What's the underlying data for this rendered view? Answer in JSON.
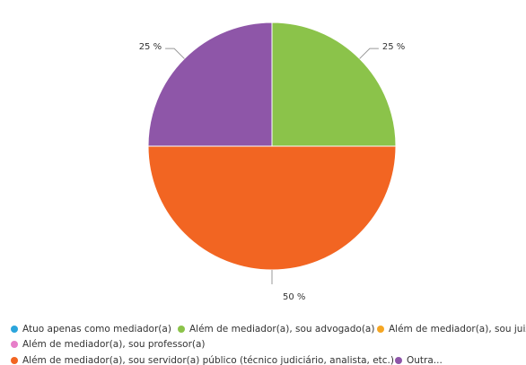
{
  "chart_data": {
    "type": "pie",
    "categories": [
      "Atuo apenas como mediador(a)",
      "Além de mediador(a), sou advogado(a)",
      "Além de mediador(a), sou juiz(a)",
      "Além de mediador(a), sou professor(a)",
      "Além de mediador(a), sou servidor(a) público (técnico judiciário, analista, etc.)",
      "Outra..."
    ],
    "values": [
      0,
      25,
      0,
      0,
      50,
      25
    ],
    "value_labels": [
      null,
      "25 %",
      null,
      null,
      "50 %",
      "25 %"
    ],
    "colors": [
      "#2ba5dc",
      "#8bc34a",
      "#f5a623",
      "#e77fc9",
      "#f26522",
      "#8e56a8"
    ]
  }
}
